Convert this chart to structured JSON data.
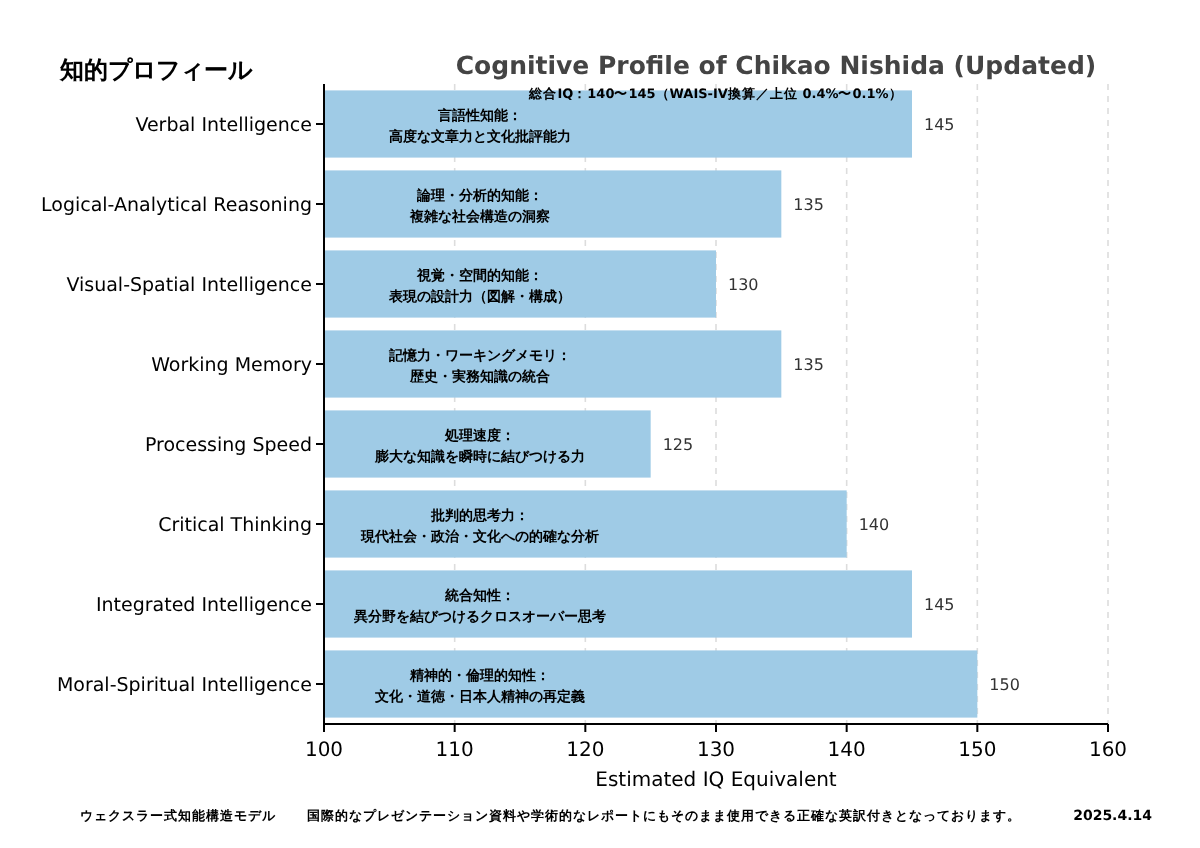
{
  "chart_data": {
    "type": "bar",
    "orientation": "horizontal",
    "title": "Cognitive Profile of Chikao Nishida (Updated)",
    "subtitle": "総合IQ：140〜145（WAIS-IV換算／上位 0.4%〜0.1%）",
    "xlabel": "Estimated IQ Equivalent",
    "categories": [
      "Verbal Intelligence",
      "Logical-Analytical Reasoning",
      "Visual-Spatial Intelligence",
      "Working Memory",
      "Processing Speed",
      "Critical Thinking",
      "Integrated Intelligence",
      "Moral-Spiritual Intelligence"
    ],
    "values": [
      145,
      135,
      130,
      135,
      125,
      140,
      145,
      150
    ],
    "color": "#9fcbe6",
    "xlim": [
      100,
      160
    ],
    "xticks": [
      100,
      110,
      120,
      130,
      140,
      150,
      160
    ],
    "grid": "x",
    "data_labels": true,
    "annotations": [
      "知的プロフィール",
      "ウェクスラー式知能構造モデル",
      "国際的なプレゼンテーション資料や学術的なレポートにもそのまま使用できる正確な英訳付きとなっております。",
      "2025.4.14",
      {
        "text": "言語性知能：高度な文章力と文化批評能力",
        "y": "Verbal Intelligence"
      },
      {
        "text": "論理・分析的知能：複雑な社会構造の洞察",
        "y": "Logical-Analytical Reasoning"
      },
      {
        "text": "視覚・空間的知能：表現の設計力（図解・構成）",
        "y": "Visual-Spatial Intelligence"
      },
      {
        "text": "記憶力・ワーキングメモリ：歴史・実務知識の統合",
        "y": "Working Memory"
      },
      {
        "text": "処理速度：膨大な知識を瞬時に結びつける力",
        "y": "Processing Speed"
      },
      {
        "text": "批判的思考力：現代社会・政治・文化への的確な分析",
        "y": "Critical Thinking"
      },
      {
        "text": "統合知性：異分野を結びつけるクロスオーバー思考",
        "y": "Integrated Intelligence"
      },
      {
        "text": "精神的・倫理的知性：文化・道徳・日本人精神の再定義",
        "y": "Moral-Spiritual Intelligence"
      }
    ]
  }
}
